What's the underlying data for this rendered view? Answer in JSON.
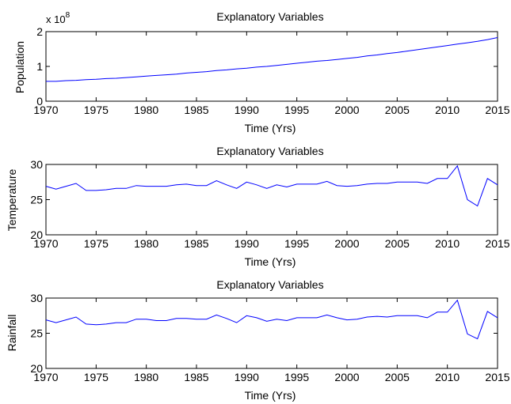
{
  "chart_data": [
    {
      "type": "line",
      "title": "Explanatory Variables",
      "xlabel": "Time (Yrs)",
      "ylabel": "Population",
      "y_exponent_label": "x 10",
      "y_exponent": "8",
      "xlim": [
        1970,
        2015
      ],
      "ylim": [
        0,
        2
      ],
      "xticks": [
        "1970",
        "1975",
        "1980",
        "1985",
        "1990",
        "1995",
        "2000",
        "2005",
        "2010",
        "2015"
      ],
      "yticks": [
        "0",
        "1",
        "2"
      ],
      "grid": false,
      "color": "#0000ff",
      "x": [
        1970,
        1971,
        1972,
        1973,
        1974,
        1975,
        1976,
        1977,
        1978,
        1979,
        1980,
        1981,
        1982,
        1983,
        1984,
        1985,
        1986,
        1987,
        1988,
        1989,
        1990,
        1991,
        1992,
        1993,
        1994,
        1995,
        1996,
        1997,
        1998,
        1999,
        2000,
        2001,
        2002,
        2003,
        2004,
        2005,
        2006,
        2007,
        2008,
        2009,
        2010,
        2011,
        2012,
        2013,
        2014,
        2015
      ],
      "values": [
        0.57,
        0.57,
        0.59,
        0.6,
        0.62,
        0.63,
        0.65,
        0.66,
        0.68,
        0.7,
        0.72,
        0.74,
        0.76,
        0.78,
        0.81,
        0.83,
        0.85,
        0.88,
        0.9,
        0.93,
        0.95,
        0.98,
        1.0,
        1.03,
        1.06,
        1.09,
        1.12,
        1.15,
        1.17,
        1.2,
        1.23,
        1.26,
        1.3,
        1.33,
        1.37,
        1.4,
        1.44,
        1.48,
        1.52,
        1.56,
        1.6,
        1.64,
        1.68,
        1.72,
        1.77,
        1.83
      ]
    },
    {
      "type": "line",
      "title": "Explanatory Variables",
      "xlabel": "Time (Yrs)",
      "ylabel": "Temperature",
      "xlim": [
        1970,
        2015
      ],
      "ylim": [
        20,
        30
      ],
      "xticks": [
        "1970",
        "1975",
        "1980",
        "1985",
        "1990",
        "1995",
        "2000",
        "2005",
        "2010",
        "2015"
      ],
      "yticks": [
        "20",
        "25",
        "30"
      ],
      "grid": false,
      "color": "#0000ff",
      "x": [
        1970,
        1971,
        1972,
        1973,
        1974,
        1975,
        1976,
        1977,
        1978,
        1979,
        1980,
        1981,
        1982,
        1983,
        1984,
        1985,
        1986,
        1987,
        1988,
        1989,
        1990,
        1991,
        1992,
        1993,
        1994,
        1995,
        1996,
        1997,
        1998,
        1999,
        2000,
        2001,
        2002,
        2003,
        2004,
        2005,
        2006,
        2007,
        2008,
        2009,
        2010,
        2011,
        2012,
        2013,
        2014,
        2015
      ],
      "values": [
        26.9,
        26.5,
        26.9,
        27.3,
        26.3,
        26.3,
        26.4,
        26.6,
        26.6,
        27.0,
        26.9,
        26.9,
        26.9,
        27.1,
        27.2,
        27.0,
        27.0,
        27.7,
        27.1,
        26.6,
        27.5,
        27.1,
        26.6,
        27.1,
        26.8,
        27.2,
        27.2,
        27.2,
        27.6,
        27.0,
        26.9,
        27.0,
        27.2,
        27.3,
        27.3,
        27.5,
        27.5,
        27.5,
        27.3,
        28.0,
        28.0,
        29.8,
        25.0,
        24.1,
        28.0,
        27.1
      ]
    },
    {
      "type": "line",
      "title": "Explanatory Variables",
      "xlabel": "Time (Yrs)",
      "ylabel": "Rainfall",
      "xlim": [
        1970,
        2015
      ],
      "ylim": [
        20,
        30
      ],
      "xticks": [
        "1970",
        "1975",
        "1980",
        "1985",
        "1990",
        "1995",
        "2000",
        "2005",
        "2010",
        "2015"
      ],
      "yticks": [
        "20",
        "25",
        "30"
      ],
      "grid": false,
      "color": "#0000ff",
      "x": [
        1970,
        1971,
        1972,
        1973,
        1974,
        1975,
        1976,
        1977,
        1978,
        1979,
        1980,
        1981,
        1982,
        1983,
        1984,
        1985,
        1986,
        1987,
        1988,
        1989,
        1990,
        1991,
        1992,
        1993,
        1994,
        1995,
        1996,
        1997,
        1998,
        1999,
        2000,
        2001,
        2002,
        2003,
        2004,
        2005,
        2006,
        2007,
        2008,
        2009,
        2010,
        2011,
        2012,
        2013,
        2014,
        2015
      ],
      "values": [
        26.9,
        26.5,
        26.9,
        27.3,
        26.3,
        26.2,
        26.3,
        26.5,
        26.5,
        27.0,
        27.0,
        26.8,
        26.8,
        27.1,
        27.1,
        27.0,
        27.0,
        27.6,
        27.1,
        26.5,
        27.5,
        27.2,
        26.7,
        27.0,
        26.8,
        27.2,
        27.2,
        27.2,
        27.6,
        27.2,
        26.9,
        27.0,
        27.3,
        27.4,
        27.3,
        27.5,
        27.5,
        27.5,
        27.2,
        28.0,
        28.0,
        29.7,
        24.9,
        24.2,
        28.1,
        27.2
      ]
    }
  ]
}
